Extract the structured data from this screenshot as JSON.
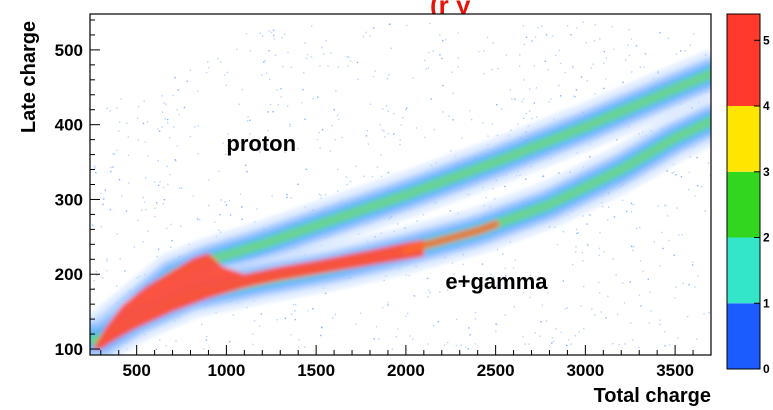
{
  "header": {
    "clipped_title": "(r      y"
  },
  "chart_data": {
    "type": "heatmap",
    "title": "",
    "xlabel": "Total charge",
    "ylabel": "Late charge",
    "xlim": [
      240,
      3700
    ],
    "ylim": [
      92,
      548
    ],
    "x_ticks": [
      500,
      1000,
      1500,
      2000,
      2500,
      3000,
      3500
    ],
    "y_ticks": [
      100,
      200,
      300,
      400,
      500
    ],
    "x_tick_labels": [
      "500",
      "1000",
      "1500",
      "2000",
      "2500",
      "3000",
      "3500"
    ],
    "y_tick_labels": [
      "100",
      "200",
      "300",
      "400",
      "500"
    ],
    "grid": false,
    "colorbar": {
      "range": [
        0,
        5.4
      ],
      "ticks": [
        "0",
        "1",
        "2",
        "3",
        "4",
        "5"
      ],
      "colors": [
        "#1a5cff",
        "#33e6c9",
        "#33d61f",
        "#ffe600",
        "#ff3a2a"
      ]
    },
    "annotations": [
      {
        "text": "proton",
        "x": 1000,
        "y": 365
      },
      {
        "text": "e+gamma",
        "x": 2220,
        "y": 180
      }
    ],
    "bands": [
      {
        "name": "proton",
        "ridge": [
          [
            300,
            118
          ],
          [
            500,
            158
          ],
          [
            700,
            198
          ],
          [
            900,
            218
          ],
          [
            1200,
            240
          ],
          [
            1500,
            265
          ],
          [
            2000,
            306
          ],
          [
            2500,
            350
          ],
          [
            3000,
            397
          ],
          [
            3500,
            448
          ],
          [
            3700,
            468
          ]
        ]
      },
      {
        "name": "e+gamma",
        "ridge": [
          [
            300,
            112
          ],
          [
            500,
            140
          ],
          [
            800,
            172
          ],
          [
            1200,
            192
          ],
          [
            1600,
            210
          ],
          [
            2000,
            232
          ],
          [
            2400,
            258
          ],
          [
            2800,
            293
          ],
          [
            3200,
            340
          ],
          [
            3500,
            382
          ],
          [
            3700,
            405
          ]
        ]
      }
    ]
  }
}
